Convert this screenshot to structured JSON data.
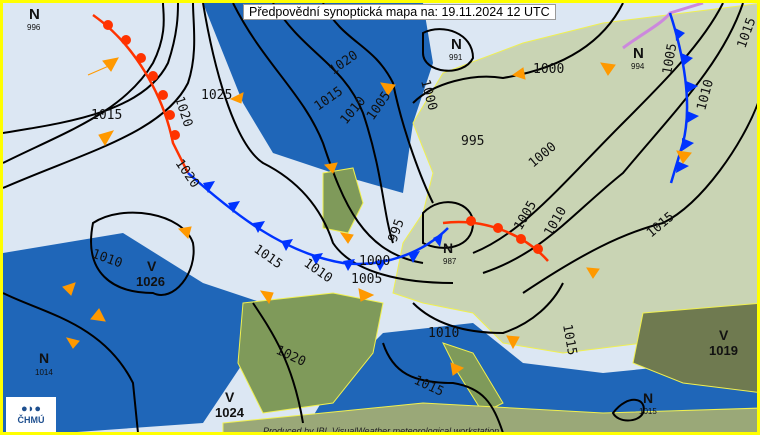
{
  "title": "Předpovědní synoptická mapa na: 19.11.2024 12 UTC",
  "credit": "Produced by IBL VisualWeather meteorological workstation",
  "logo": {
    "mark": "●◗●",
    "text": "ČHMÚ"
  },
  "colors": {
    "border": "#ffff00",
    "sea": "#1f66b8",
    "sky": "#dce7f3",
    "land": "#c9d4b4",
    "warm_front": "#ff3300",
    "cold_front": "#0033ff",
    "occlusion": "#cc88dd",
    "wind_arrow": "#ff9900"
  },
  "centers": [
    {
      "type": "N",
      "value": "996"
    },
    {
      "type": "N",
      "value": "991"
    },
    {
      "type": "N",
      "value": "994"
    },
    {
      "type": "V",
      "value": "1026"
    },
    {
      "type": "N",
      "value": "987"
    },
    {
      "type": "N",
      "value": "1014"
    },
    {
      "type": "V",
      "value": "1024"
    },
    {
      "type": "V",
      "value": "1019"
    },
    {
      "type": "N",
      "value": "1015"
    }
  ],
  "isobar_labels": [
    "1015",
    "1020",
    "1025",
    "1020",
    "1020",
    "1015",
    "1010",
    "1005",
    "1000",
    "1000",
    "995",
    "1000",
    "995",
    "1015",
    "1010",
    "1000",
    "1005",
    "1005",
    "1010",
    "1015",
    "1015",
    "1010",
    "1005",
    "1010",
    "1010",
    "1020",
    "1015",
    "1015"
  ]
}
